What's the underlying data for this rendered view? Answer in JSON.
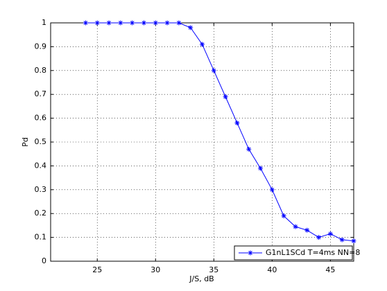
{
  "chart_data": {
    "type": "line",
    "x_label": "J/S, dB",
    "y_label": "Pd",
    "x": [
      24,
      25,
      26,
      27,
      28,
      29,
      30,
      31,
      32,
      33,
      34,
      35,
      36,
      37,
      38,
      39,
      40,
      41,
      42,
      43,
      44,
      45,
      46,
      47
    ],
    "series": [
      {
        "name": "G1nL1SCd T=4ms NN=8",
        "color": "#0000ff",
        "values": [
          1,
          1,
          1,
          1,
          1,
          1,
          1,
          1,
          1,
          0.98,
          0.91,
          0.8,
          0.69,
          0.58,
          0.47,
          0.39,
          0.3,
          0.19,
          0.145,
          0.13,
          0.1,
          0.115,
          0.09,
          0.085
        ]
      }
    ],
    "xlim": [
      21,
      47
    ],
    "xticks": [
      25,
      30,
      35,
      40,
      45
    ],
    "ylim": [
      0,
      1
    ],
    "yticks": [
      0,
      0.1,
      0.2,
      0.3,
      0.4,
      0.5,
      0.6,
      0.7,
      0.8,
      0.9,
      1
    ],
    "grid": true,
    "legend": "lower right"
  }
}
